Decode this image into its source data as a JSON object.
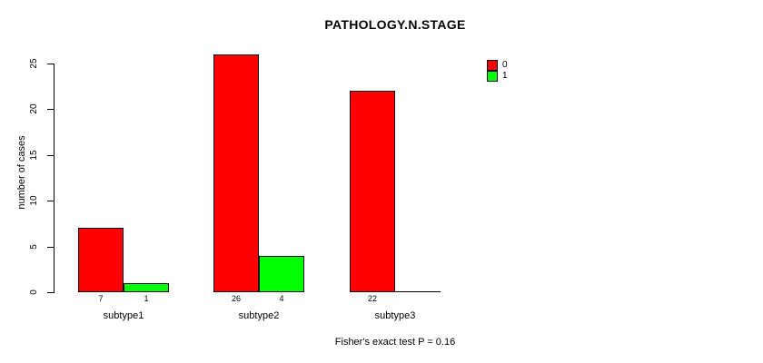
{
  "chart_data": {
    "type": "bar",
    "title": "PATHOLOGY.N.STAGE",
    "xlabel": "",
    "ylabel": "number of cases",
    "categories": [
      "subtype1",
      "subtype2",
      "subtype3"
    ],
    "series": [
      {
        "name": "0",
        "color": "#FF0000",
        "values": [
          7,
          26,
          22
        ]
      },
      {
        "name": "1",
        "color": "#00FF00",
        "values": [
          1,
          4,
          0
        ]
      }
    ],
    "bar_labels": [
      [
        "7",
        "1"
      ],
      [
        "26",
        "4"
      ],
      [
        "22",
        ""
      ]
    ],
    "yticks": [
      0,
      5,
      10,
      15,
      20,
      25
    ],
    "ylim": [
      0,
      26
    ],
    "grid": "off",
    "legend_position": "top-right",
    "annotation": "Fisher's exact test P = 0.16",
    "bar_border_color": "#000000",
    "background_color": "#FFFFFF"
  }
}
